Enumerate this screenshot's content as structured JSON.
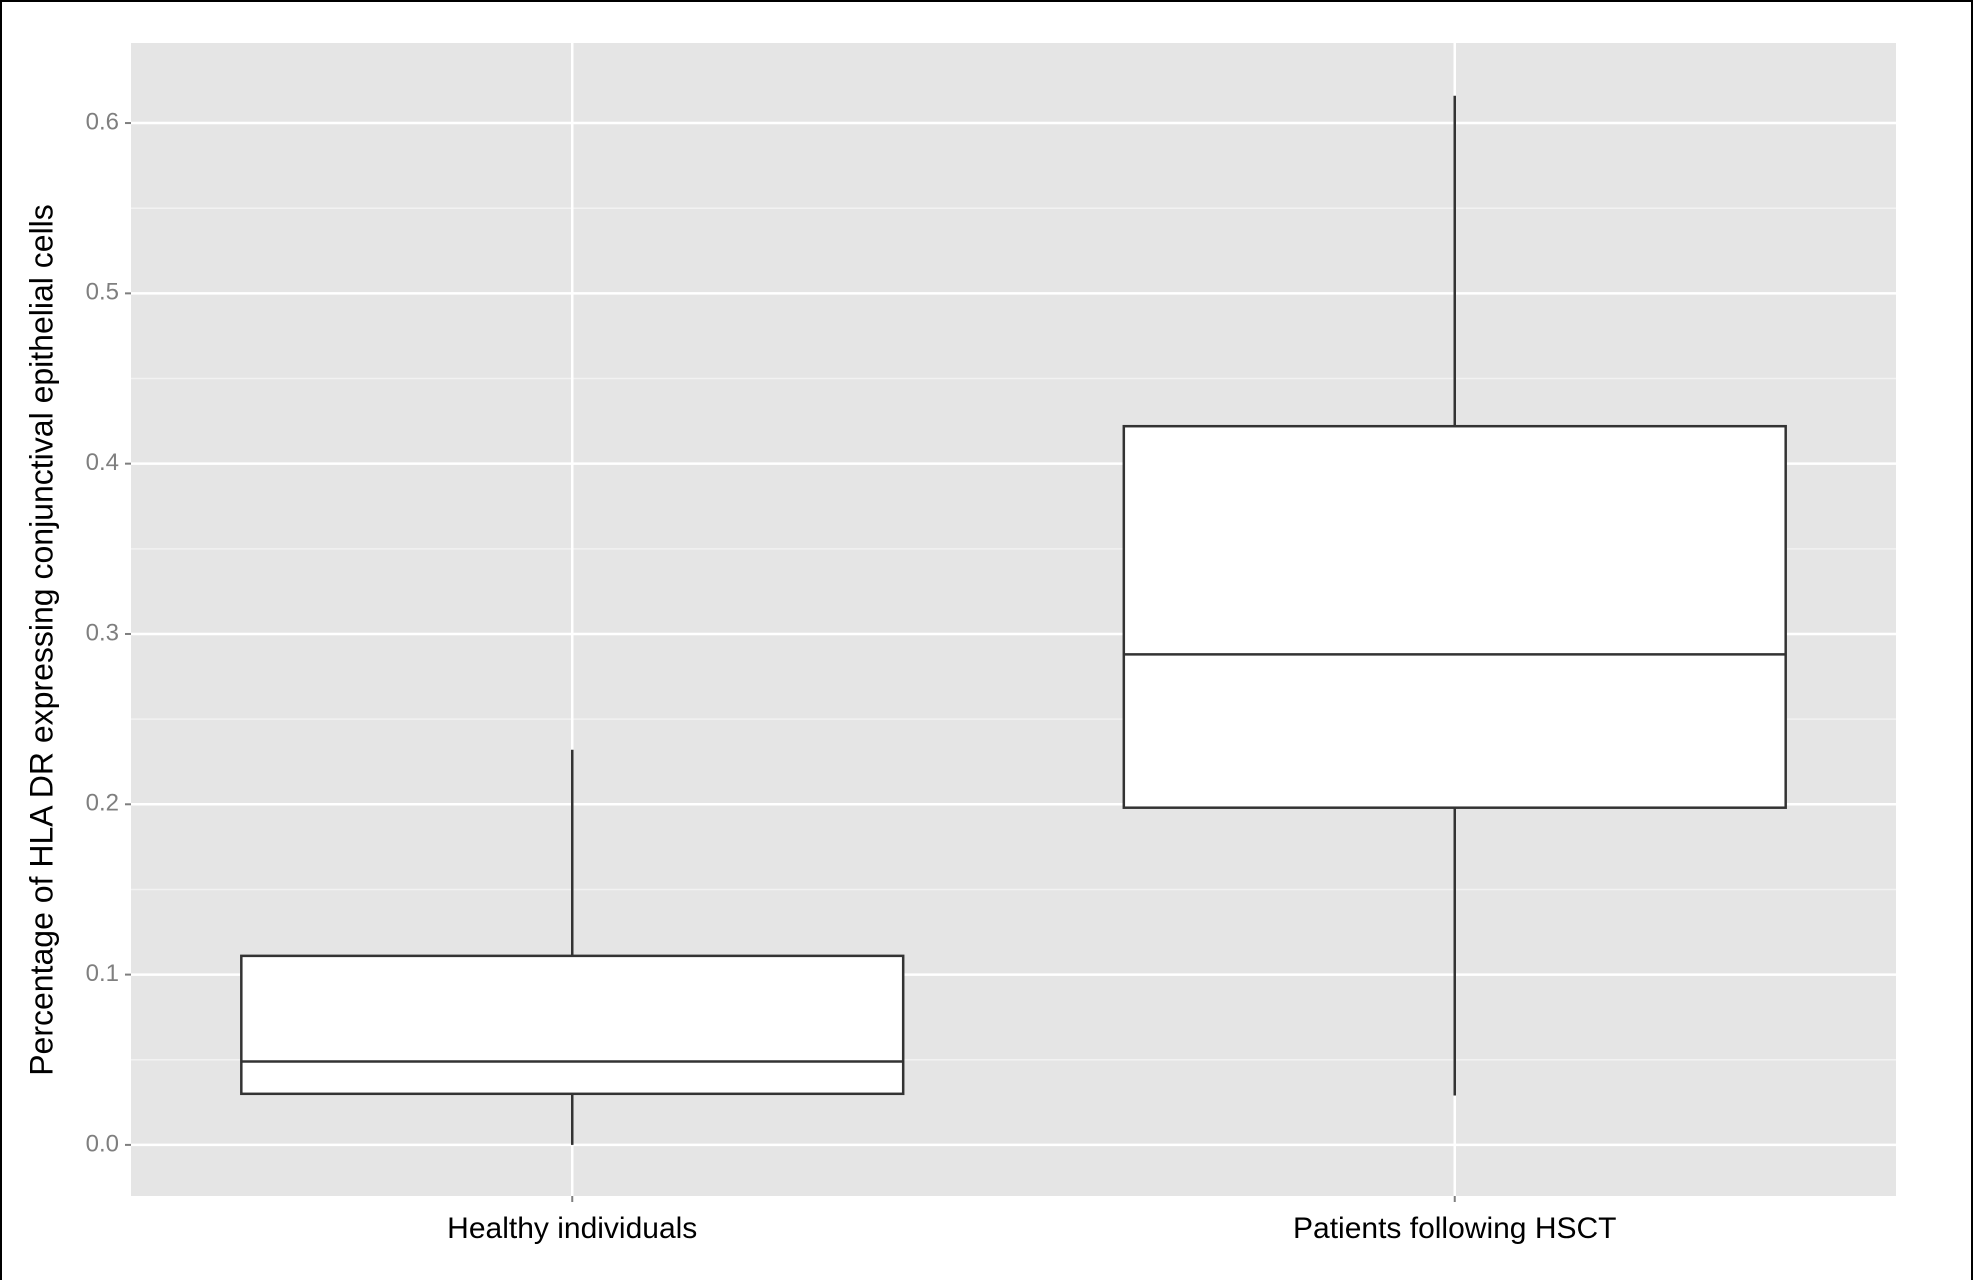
{
  "chart_data": {
    "type": "boxplot",
    "y_label": "Percentage of HLA DR expressing conjunctival epithelial cells",
    "categories": [
      "Healthy individuals",
      "Patients following HSCT"
    ],
    "min": [
      0.0,
      0.029
    ],
    "q1": [
      0.03,
      0.198
    ],
    "median": [
      0.049,
      0.288
    ],
    "q3": [
      0.111,
      0.422
    ],
    "max": [
      0.232,
      0.616
    ],
    "ylim": [
      -0.03,
      0.647
    ],
    "yticks": [
      {
        "value": 0,
        "label": "0.0"
      },
      0.1,
      0.2,
      0.3,
      0.4,
      0.5,
      0.6
    ],
    "minor_yticks": [
      0.05,
      0.15,
      0.25,
      0.35,
      0.45,
      0.55
    ],
    "grid": true,
    "panel_color": "#e5e5e5",
    "box_fill": "#ffffff",
    "box_stroke": "#333333"
  }
}
